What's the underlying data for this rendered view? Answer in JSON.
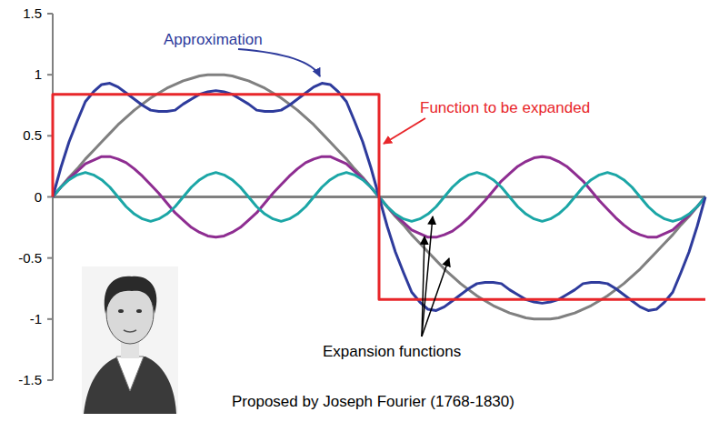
{
  "chart_data": {
    "type": "line",
    "x": [
      0,
      0.025,
      0.05,
      0.075,
      0.1,
      0.125,
      0.15,
      0.175,
      0.2,
      0.225,
      0.25,
      0.275,
      0.3,
      0.325,
      0.35,
      0.375,
      0.4,
      0.425,
      0.45,
      0.475,
      0.5,
      0.525,
      0.55,
      0.575,
      0.6,
      0.625,
      0.65,
      0.675,
      0.7,
      0.725,
      0.75,
      0.775,
      0.8,
      0.825,
      0.85,
      0.875,
      0.9,
      0.925,
      0.95,
      0.975,
      1,
      1.025,
      1.05,
      1.075,
      1.1,
      1.125,
      1.15,
      1.175,
      1.2,
      1.225,
      1.25,
      1.275,
      1.3,
      1.325,
      1.35,
      1.375,
      1.4,
      1.425,
      1.45,
      1.475,
      1.5,
      1.525,
      1.55,
      1.575,
      1.6,
      1.625,
      1.65,
      1.675,
      1.7,
      1.725,
      1.75,
      1.775,
      1.8,
      1.825,
      1.85,
      1.875,
      1.9,
      1.925,
      1.95,
      1.975,
      2
    ],
    "xlim": [
      0,
      2
    ],
    "ylim": [
      -1.5,
      1.5
    ],
    "yticks": [
      -1.5,
      -1,
      -0.5,
      0,
      0.5,
      1,
      1.5
    ],
    "tick_labels": "y",
    "grid": false,
    "series": [
      {
        "color": "#808080",
        "values": [
          0,
          0.08,
          0.16,
          0.23,
          0.31,
          0.38,
          0.45,
          0.52,
          0.59,
          0.65,
          0.71,
          0.76,
          0.81,
          0.85,
          0.89,
          0.92,
          0.95,
          0.97,
          0.99,
          1,
          1,
          1,
          0.99,
          0.97,
          0.95,
          0.92,
          0.89,
          0.85,
          0.81,
          0.76,
          0.71,
          0.65,
          0.59,
          0.52,
          0.45,
          0.38,
          0.31,
          0.23,
          0.16,
          0.08,
          0,
          -0.08,
          -0.16,
          -0.23,
          -0.31,
          -0.38,
          -0.45,
          -0.52,
          -0.59,
          -0.65,
          -0.71,
          -0.76,
          -0.81,
          -0.85,
          -0.89,
          -0.92,
          -0.95,
          -0.97,
          -0.99,
          -1,
          -1,
          -1,
          -0.99,
          -0.97,
          -0.95,
          -0.92,
          -0.89,
          -0.85,
          -0.81,
          -0.76,
          -0.71,
          -0.65,
          -0.59,
          -0.52,
          -0.45,
          -0.38,
          -0.31,
          -0.23,
          -0.16,
          -0.08,
          0
        ]
      },
      {
        "color": "#8e2d91",
        "values": [
          0,
          0.08,
          0.15,
          0.21,
          0.27,
          0.3,
          0.33,
          0.33,
          0.31,
          0.28,
          0.23,
          0.17,
          0.1,
          0.03,
          -0.05,
          -0.13,
          -0.19,
          -0.25,
          -0.29,
          -0.32,
          -0.33,
          -0.32,
          -0.29,
          -0.25,
          -0.19,
          -0.13,
          -0.05,
          0.03,
          0.1,
          0.17,
          0.23,
          0.28,
          0.31,
          0.33,
          0.33,
          0.3,
          0.27,
          0.21,
          0.15,
          0.08,
          0,
          -0.08,
          -0.15,
          -0.21,
          -0.27,
          -0.3,
          -0.33,
          -0.33,
          -0.31,
          -0.28,
          -0.23,
          -0.17,
          -0.1,
          -0.03,
          0.05,
          0.13,
          0.19,
          0.25,
          0.29,
          0.32,
          0.33,
          0.32,
          0.29,
          0.25,
          0.19,
          0.13,
          0.05,
          -0.03,
          -0.1,
          -0.17,
          -0.23,
          -0.28,
          -0.31,
          -0.33,
          -0.33,
          -0.3,
          -0.27,
          -0.21,
          -0.15,
          -0.08,
          0
        ]
      },
      {
        "color": "#1ba6a6",
        "values": [
          0,
          0.08,
          0.14,
          0.18,
          0.2,
          0.18,
          0.14,
          0.08,
          0,
          -0.08,
          -0.14,
          -0.18,
          -0.2,
          -0.18,
          -0.14,
          -0.08,
          0,
          0.08,
          0.14,
          0.18,
          0.2,
          0.18,
          0.14,
          0.08,
          0,
          -0.08,
          -0.14,
          -0.18,
          -0.2,
          -0.18,
          -0.14,
          -0.08,
          0,
          0.08,
          0.14,
          0.18,
          0.2,
          0.18,
          0.14,
          0.08,
          0,
          -0.08,
          -0.14,
          -0.18,
          -0.2,
          -0.18,
          -0.14,
          -0.08,
          0,
          0.08,
          0.14,
          0.18,
          0.2,
          0.18,
          0.14,
          0.08,
          0,
          -0.08,
          -0.14,
          -0.18,
          -0.2,
          -0.18,
          -0.14,
          -0.08,
          0,
          0.08,
          0.14,
          0.18,
          0.2,
          0.18,
          0.14,
          0.08,
          0,
          -0.08,
          -0.14,
          -0.18,
          -0.2,
          -0.18,
          -0.14,
          -0.08,
          0
        ]
      },
      {
        "color": "#2e3b9c",
        "values": [
          0,
          0.24,
          0.45,
          0.62,
          0.78,
          0.86,
          0.92,
          0.93,
          0.9,
          0.85,
          0.8,
          0.75,
          0.71,
          0.7,
          0.7,
          0.71,
          0.76,
          0.8,
          0.84,
          0.86,
          0.87,
          0.86,
          0.84,
          0.8,
          0.76,
          0.71,
          0.7,
          0.7,
          0.71,
          0.75,
          0.8,
          0.85,
          0.9,
          0.93,
          0.92,
          0.86,
          0.78,
          0.62,
          0.45,
          0.24,
          0,
          -0.24,
          -0.45,
          -0.62,
          -0.78,
          -0.86,
          -0.92,
          -0.93,
          -0.9,
          -0.85,
          -0.8,
          -0.75,
          -0.71,
          -0.7,
          -0.7,
          -0.71,
          -0.76,
          -0.8,
          -0.84,
          -0.86,
          -0.87,
          -0.86,
          -0.84,
          -0.8,
          -0.76,
          -0.71,
          -0.7,
          -0.7,
          -0.71,
          -0.75,
          -0.8,
          -0.85,
          -0.9,
          -0.93,
          -0.92,
          -0.86,
          -0.78,
          -0.62,
          -0.45,
          -0.24,
          0
        ]
      },
      {
        "color": "#e8262a",
        "x": [
          0,
          0,
          1,
          1,
          2
        ],
        "values": [
          0,
          0.84,
          0.84,
          -0.84,
          -0.84
        ]
      }
    ],
    "annotations": [
      {
        "text": "Approximation",
        "color": "#2e3b9c"
      },
      {
        "text": "Function to be expanded",
        "color": "#e8262a"
      },
      {
        "text": "Expansion functions",
        "color": "#000000"
      },
      {
        "text": "Proposed by Joseph Fourier (1768-1830)",
        "color": "#000000"
      }
    ]
  }
}
